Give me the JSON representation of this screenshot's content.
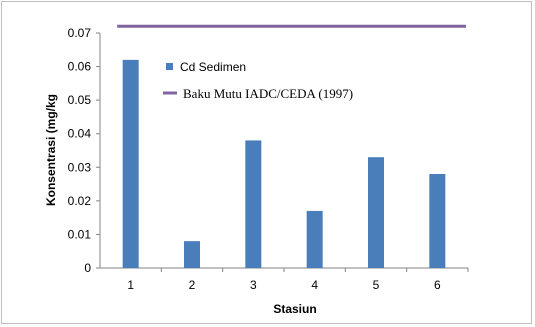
{
  "chart_data": {
    "type": "bar",
    "title": "",
    "categories": [
      "1",
      "2",
      "3",
      "4",
      "5",
      "6"
    ],
    "series": [
      {
        "name": "Cd Sedimen",
        "type": "bar",
        "values": [
          0.062,
          0.008,
          0.038,
          0.017,
          0.033,
          0.028
        ],
        "color": "#4a7ebb"
      },
      {
        "name": "Baku Mutu IADC/CEDA (1997)",
        "type": "line",
        "value": 0.072,
        "color": "#8064a2"
      }
    ],
    "xlabel": "Stasiun",
    "ylabel": "Konsentrasi (mg/kg",
    "ylim": [
      0,
      0.07
    ],
    "yticks": [
      "0",
      "0.01",
      "0.02",
      "0.03",
      "0.04",
      "0.05",
      "0.06",
      "0.07"
    ],
    "grid": false,
    "legend_position": "top-left inside plot"
  }
}
